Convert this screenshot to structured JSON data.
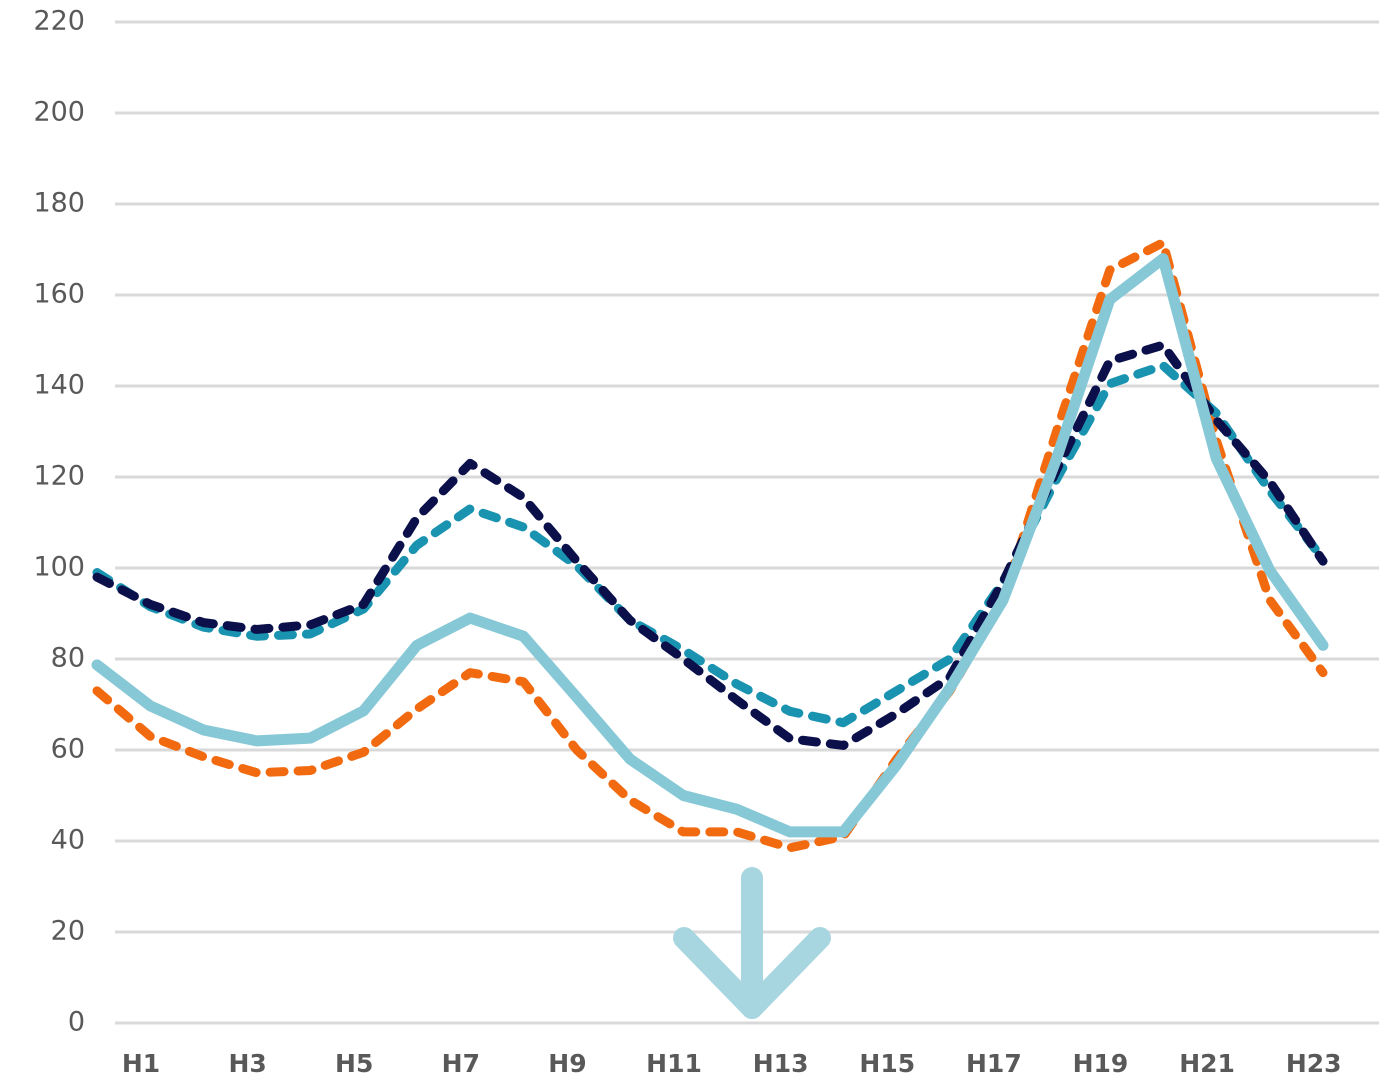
{
  "chart_data": {
    "type": "line",
    "categories": [
      "H1",
      null,
      "H3",
      null,
      "H5",
      null,
      "H7",
      null,
      "H9",
      null,
      "H11",
      null,
      "H13",
      null,
      "H15",
      null,
      "H17",
      null,
      "H19",
      null,
      "H21",
      null,
      "H23",
      null
    ],
    "series": [
      {
        "color": "#86c8d6",
        "style": "solid",
        "values": [
          78.7,
          69.7,
          64.4,
          62,
          62.6,
          68.6,
          83,
          89,
          85,
          71.6,
          58,
          50,
          47,
          42,
          42,
          56.7,
          73.6,
          93,
          124,
          159,
          168,
          124,
          99.5,
          83
        ]
      },
      {
        "color": "#f26a10",
        "style": "dashed",
        "values": [
          73,
          63,
          58.5,
          55,
          55.5,
          59.5,
          69,
          77,
          75,
          60,
          49,
          42,
          42,
          38.5,
          41,
          58,
          73,
          93,
          130,
          165.5,
          171.5,
          128,
          93,
          77
        ]
      },
      {
        "color": "#0b0f4a",
        "style": "dashed",
        "values": [
          98,
          92,
          88,
          86.5,
          87.5,
          92,
          111,
          123,
          115.5,
          101.5,
          88.5,
          80,
          71,
          62.5,
          61,
          68,
          76,
          97,
          121.5,
          145.5,
          149,
          132.5,
          119,
          101.5
        ]
      },
      {
        "color": "#1a93b0",
        "style": "dashed",
        "values": [
          99,
          91.5,
          87,
          85,
          85.5,
          91,
          105,
          113,
          109,
          100.5,
          88.5,
          82,
          74.5,
          68.5,
          66,
          73,
          80,
          97,
          119.5,
          140.5,
          144.5,
          134,
          117,
          102
        ]
      }
    ],
    "ylim": [
      0,
      220
    ],
    "yticks": [
      0,
      20,
      40,
      60,
      80,
      100,
      120,
      140,
      160,
      180,
      200,
      220
    ],
    "grid": true
  }
}
